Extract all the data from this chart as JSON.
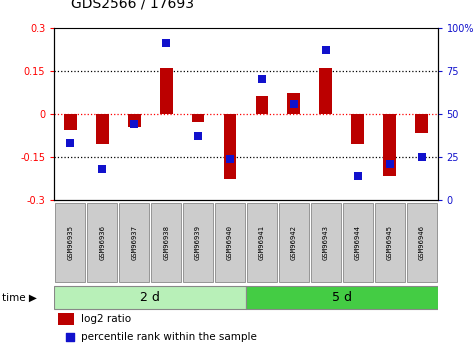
{
  "title": "GDS2566 / 17693",
  "samples": [
    "GSM96935",
    "GSM96936",
    "GSM96937",
    "GSM96938",
    "GSM96939",
    "GSM96940",
    "GSM96941",
    "GSM96942",
    "GSM96943",
    "GSM96944",
    "GSM96945",
    "GSM96946"
  ],
  "log2_ratio": [
    -0.055,
    -0.105,
    -0.045,
    0.158,
    -0.028,
    -0.225,
    0.062,
    0.072,
    0.16,
    -0.105,
    -0.215,
    -0.065
  ],
  "percentile_rank": [
    33,
    18,
    44,
    91,
    37,
    24,
    70,
    56,
    87,
    14,
    21,
    25
  ],
  "groups": [
    {
      "label": "2 d",
      "start": 0,
      "end": 5,
      "color": "#b8f0b8"
    },
    {
      "label": "5 d",
      "start": 6,
      "end": 11,
      "color": "#44cc44"
    }
  ],
  "ylim_left": [
    -0.3,
    0.3
  ],
  "ylim_right": [
    0,
    100
  ],
  "yticks_left": [
    -0.3,
    -0.15,
    0,
    0.15,
    0.3
  ],
  "yticks_right": [
    0,
    25,
    50,
    75,
    100
  ],
  "ytick_labels_left": [
    "-0.3",
    "-0.15",
    "0",
    "0.15",
    "0.3"
  ],
  "ytick_labels_right": [
    "0",
    "25",
    "50",
    "75",
    "100%"
  ],
  "dotted_hlines": [
    0.15,
    -0.15
  ],
  "red_hline": 0,
  "bar_color": "#bb0000",
  "dot_color": "#1111cc",
  "bg_color": "#ffffff",
  "label_box_color": "#cccccc",
  "label_box_edge": "#888888",
  "group_border_color": "#888888",
  "time_label": "time ▶",
  "legend_log2": "log2 ratio",
  "legend_pct": "percentile rank within the sample",
  "bar_width": 0.4
}
